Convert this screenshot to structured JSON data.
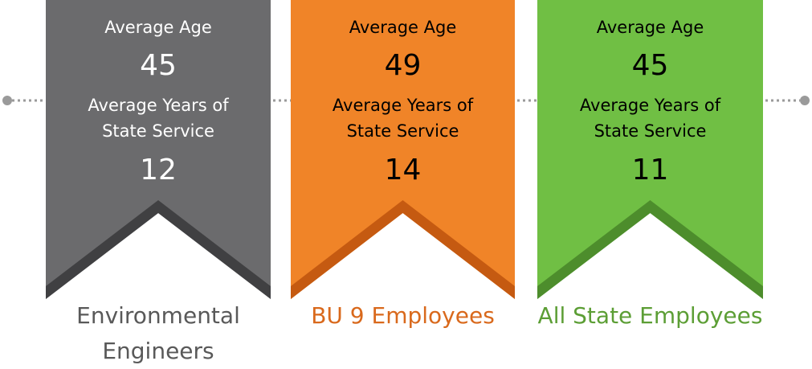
{
  "banners": [
    {
      "metrics": [
        {
          "label": "Average Age",
          "value": "45"
        },
        {
          "label_lines": [
            "Average Years of",
            "State Service"
          ],
          "value": "12"
        }
      ],
      "caption_lines": [
        "Environmental",
        "Engineers"
      ]
    },
    {
      "metrics": [
        {
          "label": "Average Age",
          "value": "49"
        },
        {
          "label_lines": [
            "Average Years of",
            "State Service"
          ],
          "value": "14"
        }
      ],
      "caption_lines": [
        "BU 9 Employees"
      ]
    },
    {
      "metrics": [
        {
          "label": "Average Age",
          "value": "45"
        },
        {
          "label_lines": [
            "Average Years of",
            "State Service"
          ],
          "value": "11"
        }
      ],
      "caption_lines": [
        "All State Employees"
      ]
    }
  ]
}
